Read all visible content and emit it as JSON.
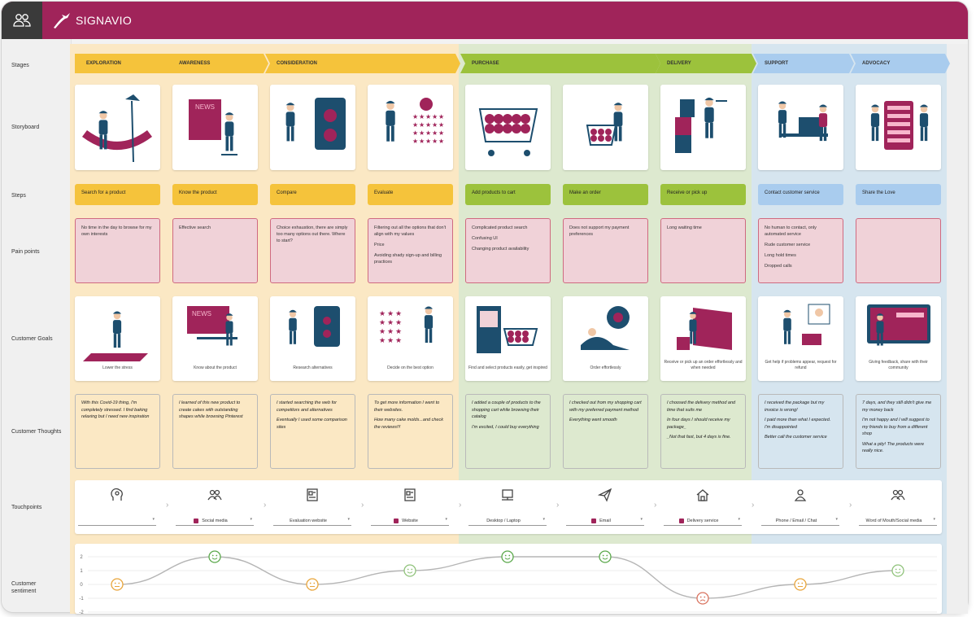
{
  "app": {
    "brand": "SIGNAVIO"
  },
  "row_labels": {
    "stages": "Stages",
    "storyboard": "Storyboard",
    "steps": "Steps",
    "pain_points": "Pain points",
    "customer_goals": "Customer Goals",
    "customer_thoughts": "Customer Thoughts",
    "touchpoints": "Touchpoints",
    "customer_sentiment_line1": "Customer",
    "customer_sentiment_line2": "sentiment"
  },
  "stages": [
    {
      "label": "EXPLORATION",
      "color": "#f5c33b"
    },
    {
      "label": "AWARENESS",
      "color": "#f5c33b"
    },
    {
      "label": "CONSIDERATION",
      "color": "#f5c33b"
    },
    {
      "label": "PURCHASE",
      "color": "#9cc23c"
    },
    {
      "label": "DELIVERY",
      "color": "#9cc23c"
    },
    {
      "label": "SUPPORT",
      "color": "#a9ccee"
    },
    {
      "label": "ADVOCACY",
      "color": "#a9ccee"
    }
  ],
  "columns": [
    {
      "step": "Search for a product",
      "step_color": "#f5c33b",
      "pains": [
        "No time in the day to browse for my own interests"
      ],
      "goal": "Lower the stress",
      "thoughts": [
        "With this Covid-19 thing, I'm completely stressed. I find baking relaxing but I need new inspiration"
      ],
      "touchpoint": {
        "icon": "head-icon",
        "label": "",
        "flag": false
      }
    },
    {
      "step": "Know the product",
      "step_color": "#f5c33b",
      "pains": [
        "Effective search"
      ],
      "goal": "Know about the product",
      "thoughts": [
        "I learned of this new product to create cakes with outstanding shapes while browsing Pinterest"
      ],
      "touchpoint": {
        "icon": "people-icon",
        "label": "Social media",
        "flag": true
      }
    },
    {
      "step": "Compare",
      "step_color": "#f5c33b",
      "pains": [
        "Choice exhaustion, there are simply too many options out there. Where to start?"
      ],
      "goal": "Research alternatives",
      "thoughts": [
        "I started searching the web for competitors and alternatives",
        "Eventually I used some comparison sites"
      ],
      "touchpoint": {
        "icon": "webpage-icon",
        "label": "Evaluation website",
        "flag": false
      }
    },
    {
      "step": "Evaluate",
      "step_color": "#f5c33b",
      "pains": [
        "Filtering out all the options that don't align with my values",
        "Price",
        "Avoiding shady sign-up and billing practices"
      ],
      "goal": "Decide on the best option",
      "thoughts": [
        "To get more information I went to their websites.",
        "How many cake molds...and check the reviews!!!"
      ],
      "touchpoint": {
        "icon": "webpage-icon",
        "label": "Website",
        "flag": true
      }
    },
    {
      "step": "Add products to cart",
      "step_color": "#9cc23c",
      "pains": [
        "Complicated product search",
        "Confusing UI",
        "Changing product availability"
      ],
      "goal": "Find and select products easily, get inspired",
      "thoughts": [
        "I added a couple of products to the shopping cart while browsing their catalog",
        "I'm excited, I could buy everything"
      ],
      "touchpoint": {
        "icon": "computer-icon",
        "label": "Desktop / Laptop",
        "flag": false
      }
    },
    {
      "step": "Make an order",
      "step_color": "#9cc23c",
      "pains": [
        "Does not support my payment preferences"
      ],
      "goal": "Order effortlessly",
      "thoughts": [
        "I checked out from my shopping cart with my preferred payment method",
        "Everything went smooth"
      ],
      "touchpoint": {
        "icon": "paper-plane-icon",
        "label": "Email",
        "flag": true
      }
    },
    {
      "step": "Receive or pick up",
      "step_color": "#9cc23c",
      "pains": [
        "Long waiting time"
      ],
      "goal": "Receive or pick up an order effortlessly and when needed",
      "thoughts": [
        "I choosed the delivery method and time that suits me",
        "In four days I should receive my package_",
        "_Not that fast, but 4 days is fine."
      ],
      "touchpoint": {
        "icon": "house-icon",
        "label": "Delivery service",
        "flag": true
      }
    },
    {
      "step": "Contact customer service",
      "step_color": "#a9ccee",
      "pains": [
        "No human to contact, only automated service",
        "Rude customer service",
        "Long hold times",
        "Dropped calls"
      ],
      "goal": "Get help if problems appear, request for refund",
      "thoughts": [
        "I received the package but my invoice is wrong!",
        "I paid more than what I expected. I'm  disappointed",
        "Better call the customer service"
      ],
      "touchpoint": {
        "icon": "person-icon",
        "label": "Phone / Email / Chat",
        "flag": false
      }
    },
    {
      "step": "Share the Love",
      "step_color": "#a9ccee",
      "pains": [],
      "goal": "Giving feedback, share with their community",
      "thoughts": [
        "7 days, and they still didn't give me my money back",
        "I'm not happy and I will suggest to my friends to buy from a different shop",
        "What a pity! The products were really nice."
      ],
      "touchpoint": {
        "icon": "people-icon",
        "label": "Word of Mouth/Social media",
        "flag": false
      }
    }
  ],
  "sentiment": {
    "y_ticks": [
      "2",
      "1",
      "0",
      "-1",
      "-2"
    ],
    "values": [
      0,
      2,
      0,
      1,
      2,
      2,
      -1,
      0,
      1
    ]
  },
  "colors": {
    "brand": "#a0245a",
    "ink": "#1d4e6e",
    "accent": "#a0245a",
    "smile_positive": "#5aa84a",
    "smile_neutral": "#e8a53b",
    "smile_negative": "#d9735f"
  }
}
